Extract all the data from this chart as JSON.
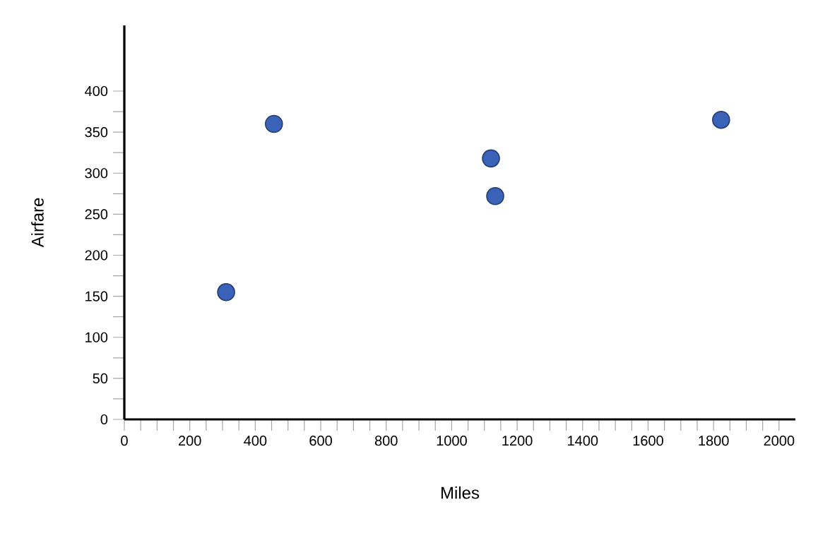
{
  "chart_data": {
    "type": "scatter",
    "xlabel": "Miles",
    "ylabel": "Airfare",
    "x": [
      311,
      457,
      1120,
      1133,
      1823
    ],
    "values": [
      155,
      360,
      318,
      272,
      365
    ],
    "color": "#3a62b8",
    "marker": "circle",
    "xlim": [
      0,
      2050
    ],
    "xticks": [
      0,
      200,
      400,
      600,
      800,
      1000,
      1200,
      1400,
      1600,
      1800,
      2000
    ],
    "ylim": [
      0,
      480
    ],
    "yticks": [
      0,
      50,
      100,
      150,
      200,
      250,
      300,
      350,
      400
    ],
    "grid": false
  }
}
